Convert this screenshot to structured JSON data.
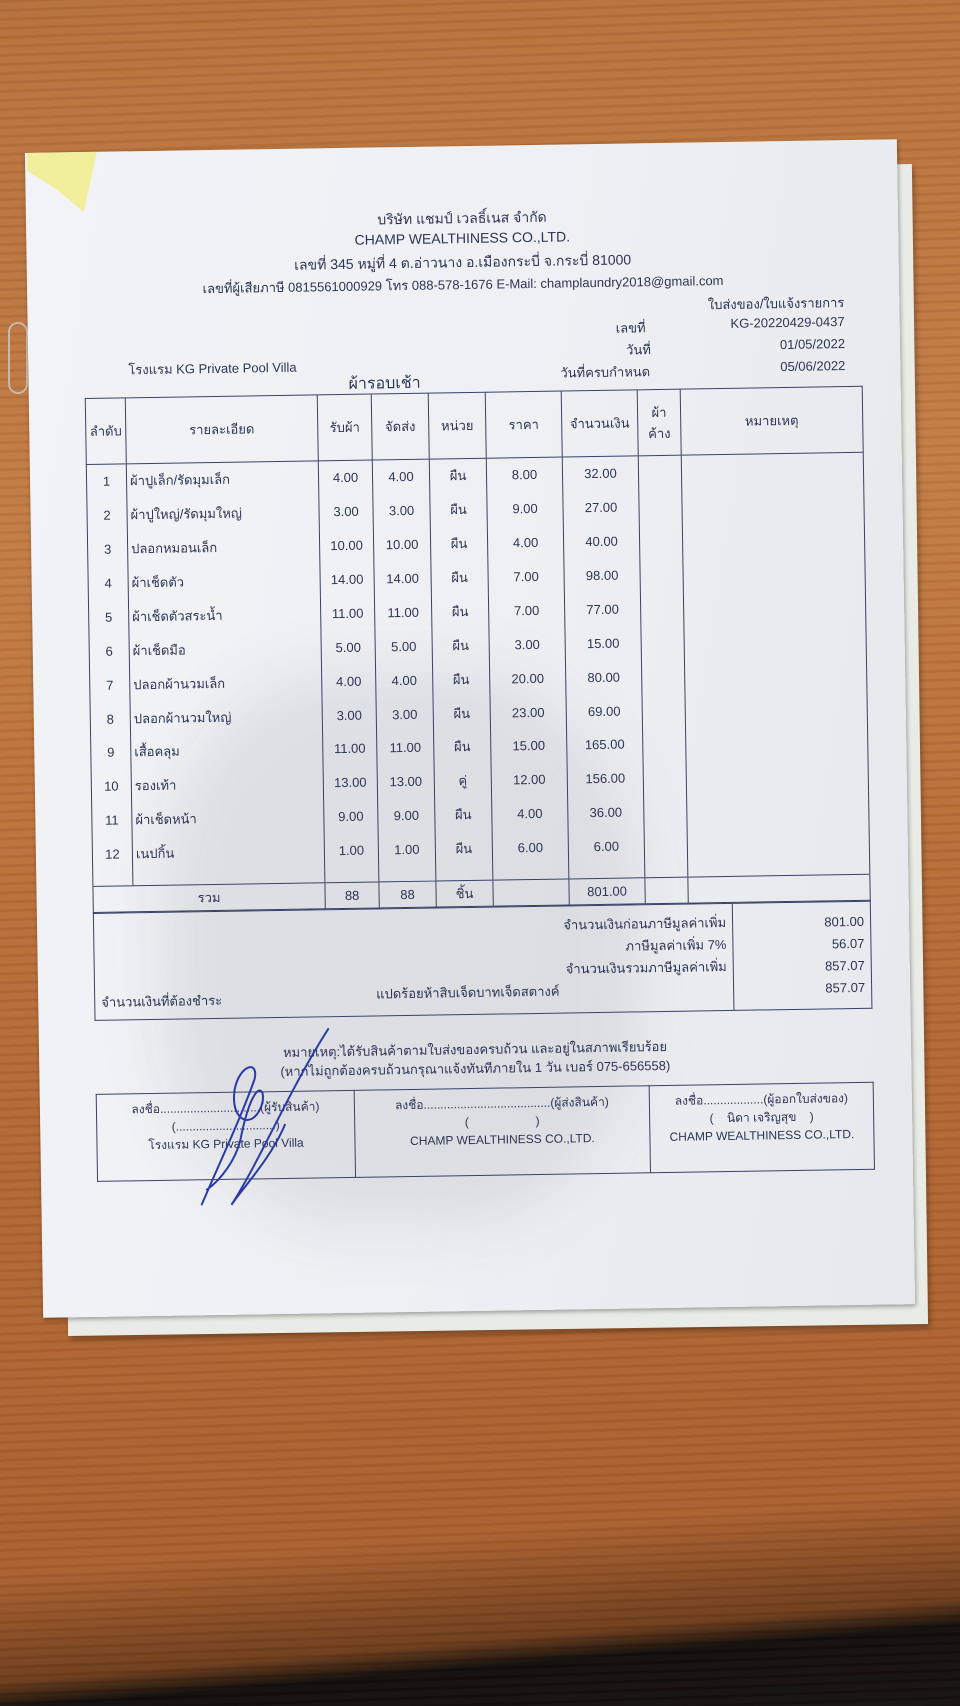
{
  "company": {
    "name_th": "บริษัท แชมป์ เวลธิ์เนส จำกัด",
    "name_en": "CHAMP WEALTHINESS CO.,LTD.",
    "address": "เลขที่ 345 หมู่ที่ 4 ต.อ่าวนาง อ.เมืองกระบี่ จ.กระบี่ 81000",
    "contact": "เลขที่ผู้เสียภาษี 0815561000929 โทร 088-578-1676 E-Mail: champlaundry2018@gmail.com"
  },
  "doc": {
    "type": "ใบส่งของ/ใบแจ้งรายการ",
    "no_label": "เลขที่",
    "no": "KG-20220429-0437",
    "date_label": "วันที่",
    "date": "01/05/2022",
    "due_label": "วันที่ครบกำหนด",
    "due": "05/06/2022",
    "customer": "โรงแรม KG Private Pool Villa",
    "round": "ผ้ารอบเช้า"
  },
  "table": {
    "headers": [
      "ลำดับ",
      "รายละเอียด",
      "รับผ้า",
      "จัดส่ง",
      "หน่วย",
      "ราคา",
      "จำนวนเงิน",
      "ผ้าค้าง",
      "หมายเหตุ"
    ],
    "rows": [
      [
        "1",
        "ผ้าปูเล็ก/รัดมุมเล็ก",
        "4.00",
        "4.00",
        "ผืน",
        "8.00",
        "32.00"
      ],
      [
        "2",
        "ผ้าปูใหญ่/รัดมุมใหญ่",
        "3.00",
        "3.00",
        "ผืน",
        "9.00",
        "27.00"
      ],
      [
        "3",
        "ปลอกหมอนเล็ก",
        "10.00",
        "10.00",
        "ผืน",
        "4.00",
        "40.00"
      ],
      [
        "4",
        "ผ้าเช็ดตัว",
        "14.00",
        "14.00",
        "ผืน",
        "7.00",
        "98.00"
      ],
      [
        "5",
        "ผ้าเช็ดตัวสระน้ำ",
        "11.00",
        "11.00",
        "ผืน",
        "7.00",
        "77.00"
      ],
      [
        "6",
        "ผ้าเช็ดมือ",
        "5.00",
        "5.00",
        "ผืน",
        "3.00",
        "15.00"
      ],
      [
        "7",
        "ปลอกผ้านวมเล็ก",
        "4.00",
        "4.00",
        "ผืน",
        "20.00",
        "80.00"
      ],
      [
        "8",
        "ปลอกผ้านวมใหญ่",
        "3.00",
        "3.00",
        "ผืน",
        "23.00",
        "69.00"
      ],
      [
        "9",
        "เสื้อคลุม",
        "11.00",
        "11.00",
        "ผืน",
        "15.00",
        "165.00"
      ],
      [
        "10",
        "รองเท้า",
        "13.00",
        "13.00",
        "คู่",
        "12.00",
        "156.00"
      ],
      [
        "11",
        "ผ้าเช็ดหน้า",
        "9.00",
        "9.00",
        "ผืน",
        "4.00",
        "36.00"
      ],
      [
        "12",
        "เนปกิ้น",
        "1.00",
        "1.00",
        "ผืน",
        "6.00",
        "6.00"
      ]
    ],
    "total": {
      "label": "รวม",
      "received": "88",
      "delivered": "88",
      "unit": "ชิ้น",
      "amount": "801.00"
    }
  },
  "summary": {
    "pre_vat_label": "จำนวนเงินก่อนภาษีมูลค่าเพิ่ม",
    "pre_vat": "801.00",
    "vat_label": "ภาษีมูลค่าเพิ่ม 7%",
    "vat": "56.07",
    "incl_label": "จำนวนเงินรวมภาษีมูลค่าเพิ่ม",
    "incl": "857.07",
    "pay_label": "จำนวนเงินที่ต้องชำระ",
    "pay_words": "แปดร้อยห้าสิบเจ็ดบาทเจ็ดสตางค์",
    "pay": "857.07"
  },
  "note": {
    "line1": "หมายเหตุ:ได้รับสินค้าตามใบส่งของครบถ้วน และอยู่ในสภาพเรียบร้อย",
    "line2": "(หากไม่ถูกต้องครบถ้วนกรุณาแจ้งทันทีภายใน 1 วัน  เบอร์ 075-656558)"
  },
  "signatures": [
    {
      "line": "ลงชื่อ..............................(ผู้รับสินค้า)",
      "name": "(..............................)",
      "org": "โรงแรม KG Private Pool Villa"
    },
    {
      "line": "ลงชื่อ......................................(ผู้ส่งสินค้า)",
      "name": "(                    )",
      "org": "CHAMP WEALTHINESS CO.,LTD."
    },
    {
      "line": "ลงชื่อ..................(ผู้ออกใบส่งของ)",
      "name": "(    นิดา เจริญสุข    )",
      "org": "CHAMP WEALTHINESS CO.,LTD."
    }
  ]
}
